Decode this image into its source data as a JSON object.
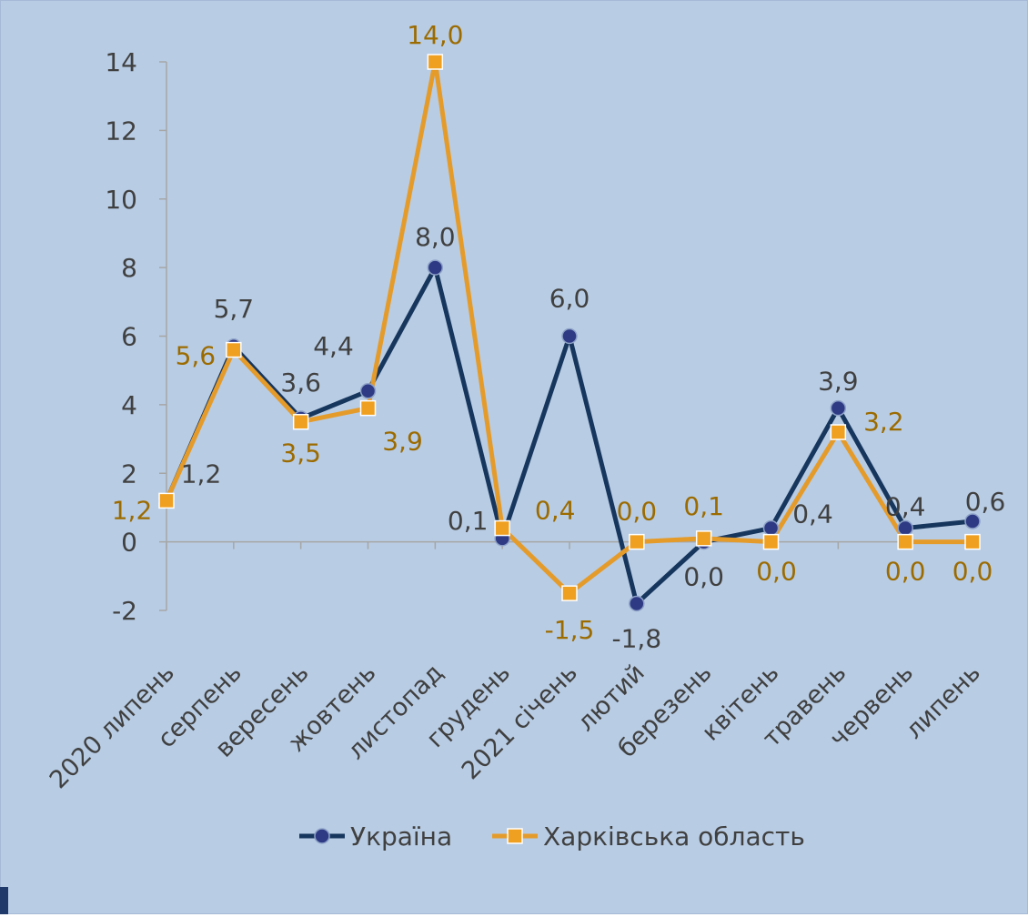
{
  "chart_data": {
    "type": "line",
    "title": "",
    "xlabel": "",
    "ylabel": "",
    "ylim": [
      -2,
      14
    ],
    "yticks": [
      -2,
      0,
      2,
      4,
      6,
      8,
      10,
      12,
      14
    ],
    "ytick_labels": [
      "-2",
      "0",
      "2",
      "4",
      "6",
      "8",
      "10",
      "12",
      "14"
    ],
    "grid": false,
    "legend_position": "bottom",
    "categories": [
      "2020 липень",
      "серпень",
      "вересень",
      "жовтень",
      "листопад",
      "грудень",
      "2021 січень",
      "лютий",
      "березень",
      "квітень",
      "травень",
      "червень",
      "липень"
    ],
    "series": [
      {
        "name": "Україна",
        "color": "#17365d",
        "marker": "circle",
        "values": [
          1.2,
          5.7,
          3.6,
          4.4,
          8.0,
          0.1,
          6.0,
          -1.8,
          0.0,
          0.4,
          3.9,
          0.4,
          0.6
        ],
        "labels": [
          "1,2",
          "5,7",
          "3,6",
          "4,4",
          "8,0",
          "0,1",
          "6,0",
          "-1,8",
          "0,0",
          "0,4",
          "3,9",
          "0,4",
          "0,6"
        ],
        "label_color": "#404040"
      },
      {
        "name": "Харківська область",
        "color": "#e59b2a",
        "marker": "square",
        "values": [
          1.2,
          5.6,
          3.5,
          3.9,
          14.0,
          0.4,
          -1.5,
          0.0,
          0.1,
          0.0,
          3.2,
          0.0,
          0.0
        ],
        "labels": [
          "1,2",
          "5,6",
          "3,5",
          "3,9",
          "14,0",
          "0,4",
          "-1,5",
          "0,0",
          "0,1",
          "0,0",
          "3,2",
          "0,0",
          "0,0"
        ],
        "label_color": "#9c6b00"
      }
    ]
  }
}
